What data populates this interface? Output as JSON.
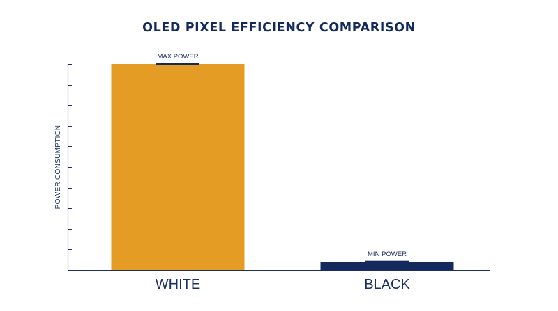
{
  "chart_data": {
    "type": "bar",
    "title": "OLED PIXEL EFFICIENCY COMPARISON",
    "xlabel": "",
    "ylabel": "POWER CONSUMPTION",
    "categories": [
      "WHITE",
      "BLACK"
    ],
    "values": [
      100,
      4
    ],
    "ylim": [
      0,
      100
    ],
    "y_tick_count": 10,
    "y_tick_labels": "none",
    "annotations": [
      "MAX POWER",
      "MIN POWER"
    ],
    "grid": false,
    "legend": "none",
    "colors": {
      "WHITE": "#e49c24",
      "BLACK": "#142a5c",
      "text": "#1b2f60",
      "axis": "#1b2f60",
      "marker": "#142a5c"
    }
  }
}
